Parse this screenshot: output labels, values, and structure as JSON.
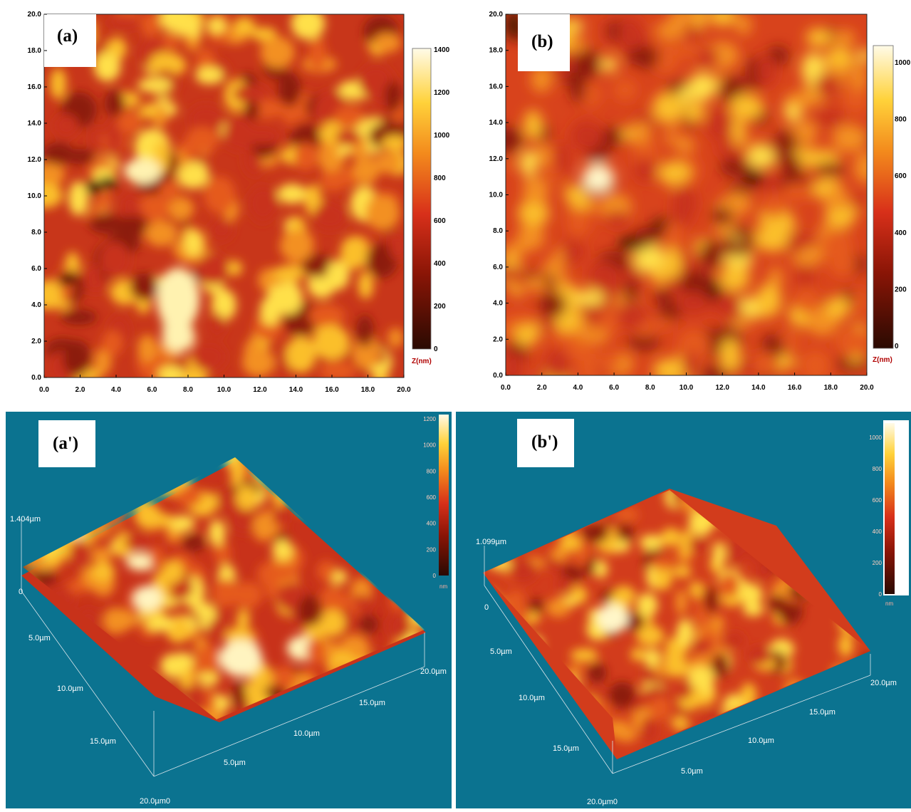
{
  "panels": {
    "a": {
      "label": "(a)",
      "y_ticks": [
        "0.0",
        "2.0",
        "4.0",
        "6.0",
        "8.0",
        "10.0",
        "12.0",
        "14.0",
        "16.0",
        "18.0",
        "20.0"
      ],
      "x_ticks": [
        "0.0",
        "2.0",
        "4.0",
        "6.0",
        "8.0",
        "10.0",
        "12.0",
        "14.0",
        "16.0",
        "18.0",
        "20.0"
      ],
      "colorbar_ticks": [
        "0",
        "200",
        "400",
        "600",
        "800",
        "1000",
        "1200",
        "1400"
      ],
      "colorbar_unit": "Z(nm)"
    },
    "b": {
      "label": "(b)",
      "y_ticks": [
        "0.0",
        "2.0",
        "4.0",
        "6.0",
        "8.0",
        "10.0",
        "12.0",
        "14.0",
        "16.0",
        "18.0",
        "20.0"
      ],
      "x_ticks": [
        "0.0",
        "2.0",
        "4.0",
        "6.0",
        "8.0",
        "10.0",
        "12.0",
        "14.0",
        "16.0",
        "18.0",
        "20.0"
      ],
      "colorbar_ticks": [
        "0",
        "200",
        "400",
        "600",
        "800",
        "1000"
      ],
      "colorbar_unit": "Z(nm)"
    },
    "a3d": {
      "label": "(a')",
      "z_max": "1.404µm",
      "z_zero": "0",
      "left_axis": [
        "5.0µm",
        "10.0µm",
        "15.0µm",
        "20.0µm0"
      ],
      "right_axis": [
        "5.0µm",
        "10.0µm",
        "15.0µm",
        "20.0µm"
      ],
      "colorbar_ticks": [
        "0",
        "200",
        "400",
        "600",
        "800",
        "1000",
        "1200"
      ],
      "colorbar_unit": "nm"
    },
    "b3d": {
      "label": "(b')",
      "z_max": "1.099µm",
      "z_zero": "0",
      "left_axis": [
        "5.0µm",
        "10.0µm",
        "15.0µm",
        "20.0µm0"
      ],
      "right_axis": [
        "5.0µm",
        "10.0µm",
        "15.0µm",
        "20.0µm"
      ],
      "colorbar_ticks": [
        "0",
        "200",
        "400",
        "600",
        "800",
        "1000"
      ],
      "colorbar_unit": "nm"
    }
  },
  "colors": {
    "background_3d": "#0b7390",
    "afm_dark": "#3a0f05",
    "afm_mid": "#d8361a",
    "afm_bright": "#ffe04a",
    "afm_white": "#fff8d8"
  }
}
